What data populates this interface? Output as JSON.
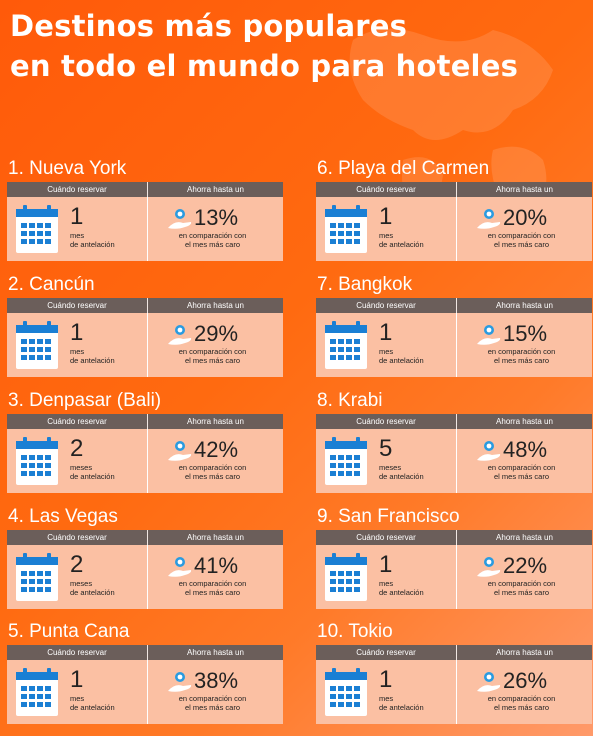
{
  "title_lines": [
    "Destinos más populares",
    "en todo el mundo para hoteles"
  ],
  "labels": {
    "book_header": "Cuándo reservar",
    "save_header": "Ahorra hasta un",
    "advance": "de antelación",
    "comparison_l1": "en comparación con",
    "comparison_l2": "el mes más caro"
  },
  "colors": {
    "background": "#ff6a10",
    "header_bar": "#6b5e5a",
    "card": "#fbc0a3",
    "calendar": "#1a7fd4"
  },
  "destinations": [
    {
      "name": "1. Nueva York",
      "months": "1",
      "unit": "mes",
      "saving": "13%"
    },
    {
      "name": "2. Cancún",
      "months": "1",
      "unit": "mes",
      "saving": "29%"
    },
    {
      "name": "3. Denpasar (Bali)",
      "months": "2",
      "unit": "meses",
      "saving": "42%"
    },
    {
      "name": "4. Las Vegas",
      "months": "2",
      "unit": "meses",
      "saving": "41%"
    },
    {
      "name": "5. Punta Cana",
      "months": "1",
      "unit": "mes",
      "saving": "38%"
    },
    {
      "name": "6. Playa del Carmen",
      "months": "1",
      "unit": "mes",
      "saving": "20%"
    },
    {
      "name": "7. Bangkok",
      "months": "1",
      "unit": "mes",
      "saving": "15%"
    },
    {
      "name": "8. Krabi",
      "months": "5",
      "unit": "meses",
      "saving": "48%"
    },
    {
      "name": "9. San Francisco",
      "months": "1",
      "unit": "mes",
      "saving": "22%"
    },
    {
      "name": "10. Tokio",
      "months": "1",
      "unit": "mes",
      "saving": "26%"
    }
  ]
}
